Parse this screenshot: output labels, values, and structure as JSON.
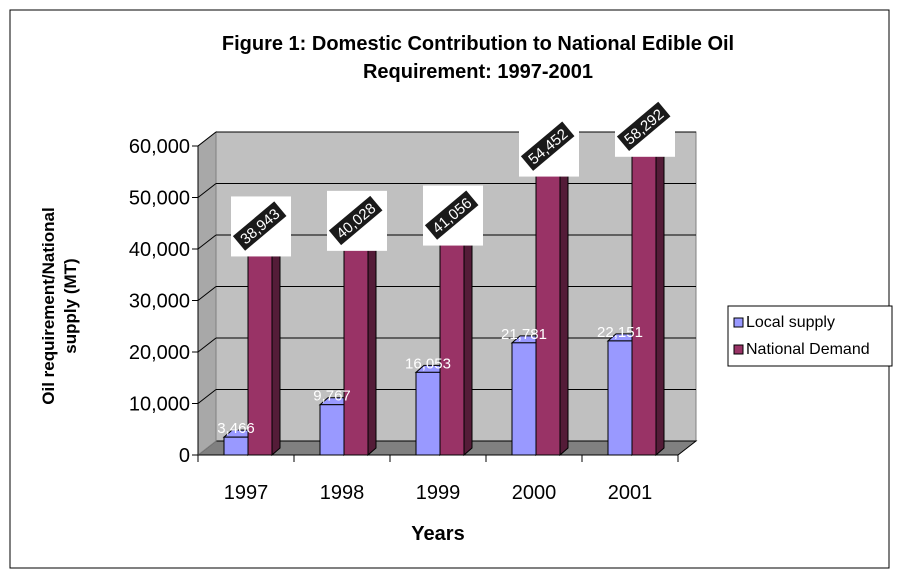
{
  "chart_data": {
    "type": "bar",
    "title": "Figure 1: Domestic Contribution to National Edible Oil Requirement: 1997-2001",
    "title_lines": [
      "Figure 1: Domestic Contribution to National Edible Oil",
      "Requirement: 1997-2001"
    ],
    "xlabel": "Years",
    "ylabel": "Oil requirement/National supply (MT)",
    "ylabel_lines": [
      "Oil requirement/National",
      "supply (MT)"
    ],
    "categories": [
      "1997",
      "1998",
      "1999",
      "2000",
      "2001"
    ],
    "ylim": [
      0,
      60000
    ],
    "yticks": [
      0,
      10000,
      20000,
      30000,
      40000,
      50000,
      60000
    ],
    "ytick_labels": [
      "0",
      "10,000",
      "20,000",
      "30,000",
      "40,000",
      "50,000",
      "60,000"
    ],
    "grid": true,
    "legend_position": "right",
    "series": [
      {
        "name": "Local supply",
        "color": "#9999ff",
        "values": [
          3466,
          9767,
          16053,
          21781,
          22151
        ],
        "labels": [
          "3,466",
          "9,767",
          "16,053",
          "21,781",
          "22,151"
        ]
      },
      {
        "name": "National Demand",
        "color": "#993366",
        "values": [
          38943,
          40028,
          41056,
          54452,
          58292
        ],
        "labels": [
          "38,943",
          "40,028",
          "41,056",
          "54,452",
          "58,292"
        ]
      }
    ]
  }
}
